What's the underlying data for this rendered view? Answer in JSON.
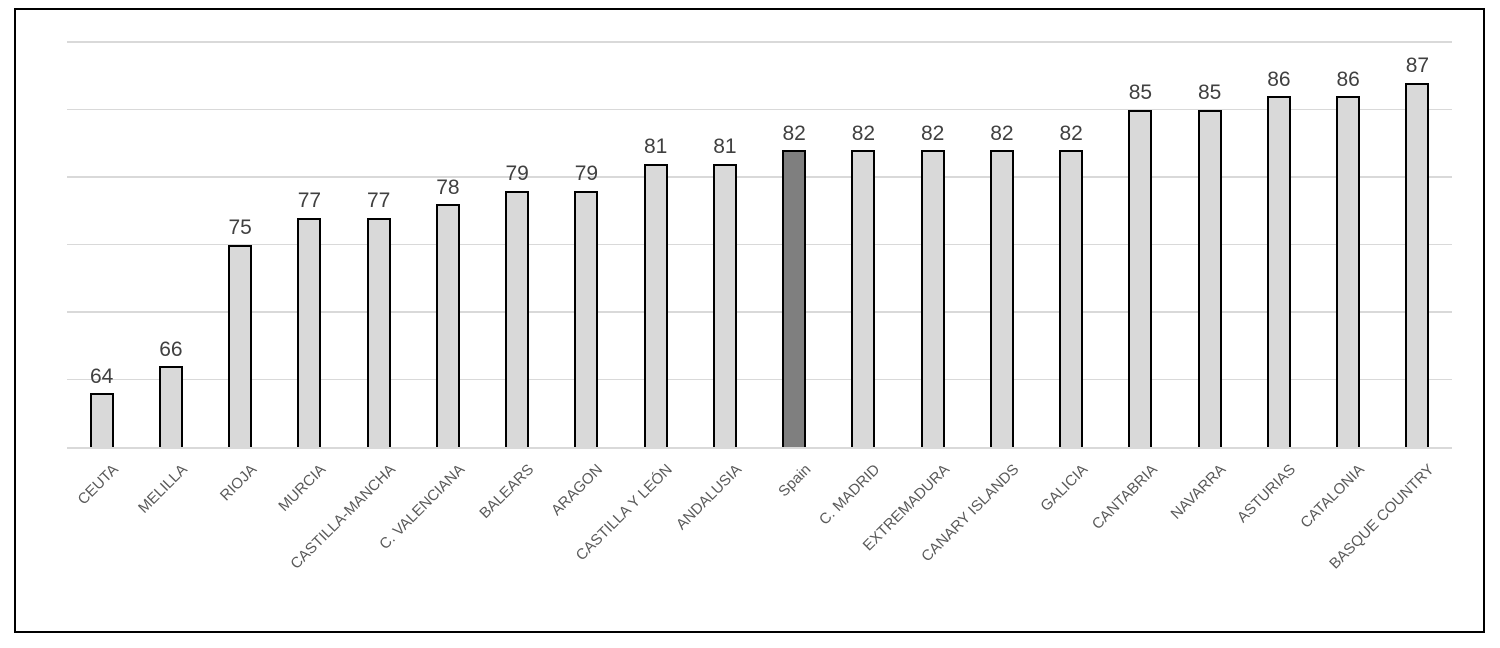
{
  "chart_data": {
    "type": "bar",
    "title": "",
    "xlabel": "",
    "ylabel": "",
    "categories": [
      "CEUTA",
      "MELILLA",
      "RIOJA",
      "MURCIA",
      "CASTILLA-MANCHA",
      "C. VALENCIANA",
      "BALEARS",
      "ARAGON",
      "CASTILLA Y LEÓN",
      "ANDALUSIA",
      "Spain",
      "C. MADRID",
      "EXTREMADURA",
      "CANARY ISLANDS",
      "GALICIA",
      "CANTABRIA",
      "NAVARRA",
      "ASTURIAS",
      "CATALONIA",
      "BASQUE COUNTRY"
    ],
    "values": [
      64,
      66,
      75,
      77,
      77,
      78,
      79,
      79,
      81,
      81,
      82,
      82,
      82,
      82,
      82,
      85,
      85,
      86,
      86,
      87
    ],
    "data_labels": [
      64,
      66,
      75,
      77,
      77,
      78,
      79,
      79,
      81,
      81,
      82,
      82,
      82,
      82,
      82,
      85,
      85,
      86,
      86,
      87
    ],
    "highlighted_category": "Spain",
    "highlight_index": 10,
    "ylim": [
      60,
      90
    ],
    "gridline_step": 5,
    "grid": true,
    "legend_position": "none",
    "y_axis_labels_visible": false,
    "category_label_rotation_deg": 45,
    "colors": {
      "bar_fill": "#d9d9d9",
      "bar_border": "#000000",
      "highlight_fill": "#7f7f7f",
      "gridline": "#d9d9d9",
      "axis_line": "#d9d9d9",
      "value_label_text": "#404040",
      "category_label_text": "#595959",
      "frame_border": "#000000",
      "background": "#ffffff"
    }
  }
}
